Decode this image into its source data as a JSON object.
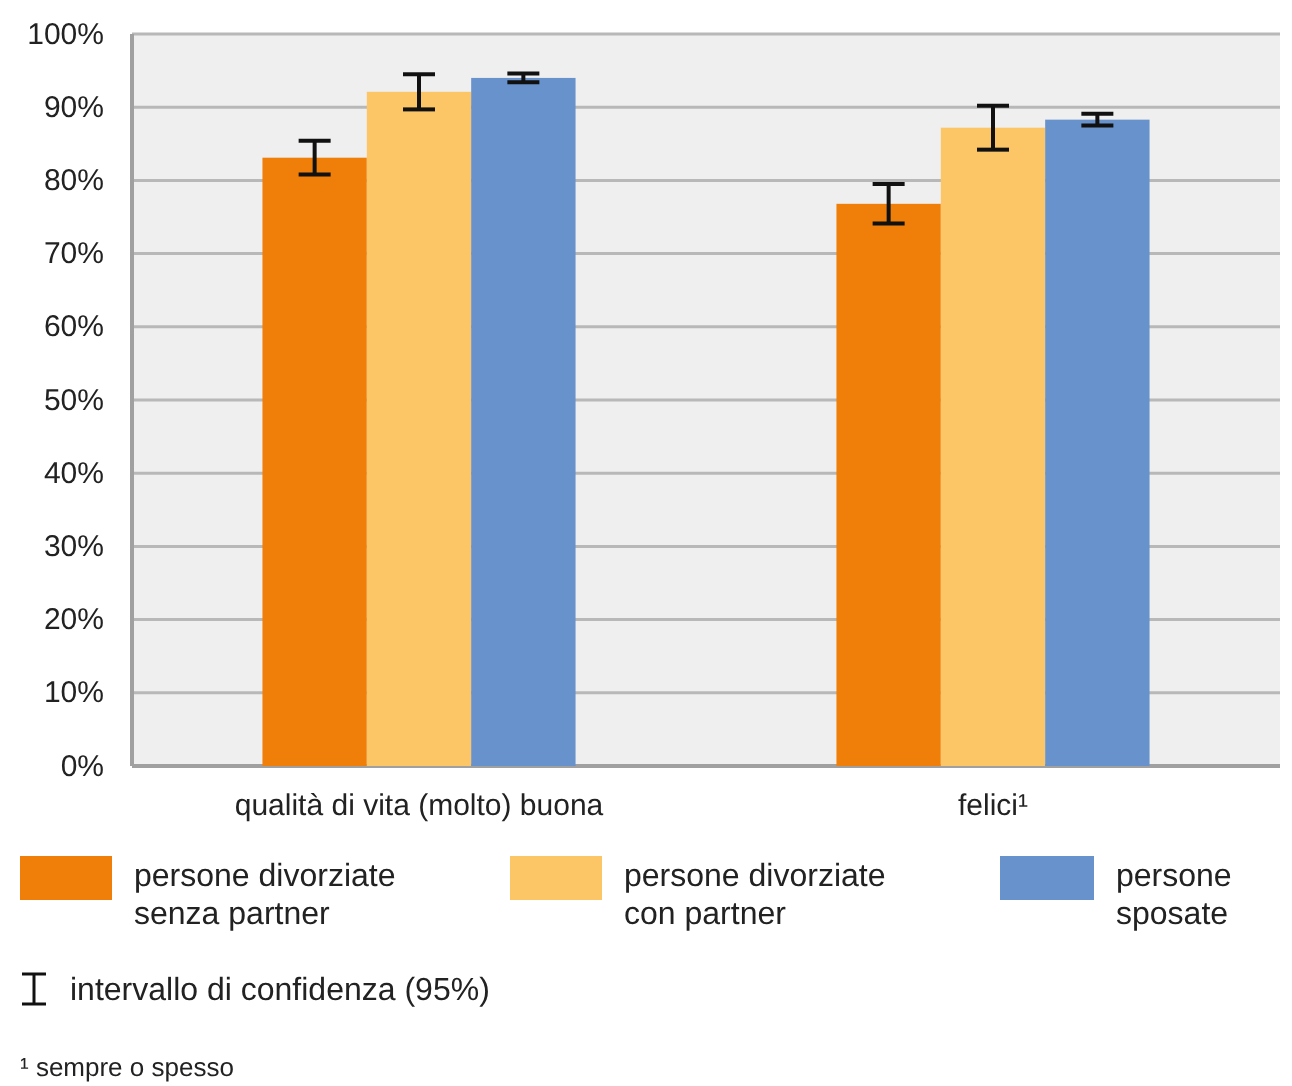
{
  "chart_data": {
    "type": "bar",
    "categories": [
      "qualità di vita (molto) buona",
      "felici¹"
    ],
    "series": [
      {
        "name": "persone divorziate senza partner",
        "color": "#f07f09",
        "values": [
          83.1,
          76.8
        ],
        "errors": [
          2.3,
          2.7
        ]
      },
      {
        "name": "persone divorziate con partner",
        "color": "#fcc566",
        "values": [
          92.1,
          87.2
        ],
        "errors": [
          2.4,
          3
        ]
      },
      {
        "name": "persone sposate",
        "color": "#6792cc",
        "values": [
          94,
          88.3
        ],
        "errors": [
          0.6,
          0.8
        ]
      }
    ],
    "ylim": [
      0,
      100
    ],
    "yticks": [
      {
        "value": 0,
        "label": "0%"
      },
      {
        "value": 10,
        "label": "10%"
      },
      {
        "value": 20,
        "label": "20%"
      },
      {
        "value": 30,
        "label": "30%"
      },
      {
        "value": 40,
        "label": "40%"
      },
      {
        "value": 50,
        "label": "50%"
      },
      {
        "value": 60,
        "label": "60%"
      },
      {
        "value": 70,
        "label": "70%"
      },
      {
        "value": 80,
        "label": "80%"
      },
      {
        "value": 90,
        "label": "90%"
      },
      {
        "value": 100,
        "label": "100%"
      }
    ],
    "grid": "y",
    "legend": "bottom",
    "annotations": [
      "intervallo di confidenza (95%)",
      "¹ sempre o spesso"
    ]
  }
}
